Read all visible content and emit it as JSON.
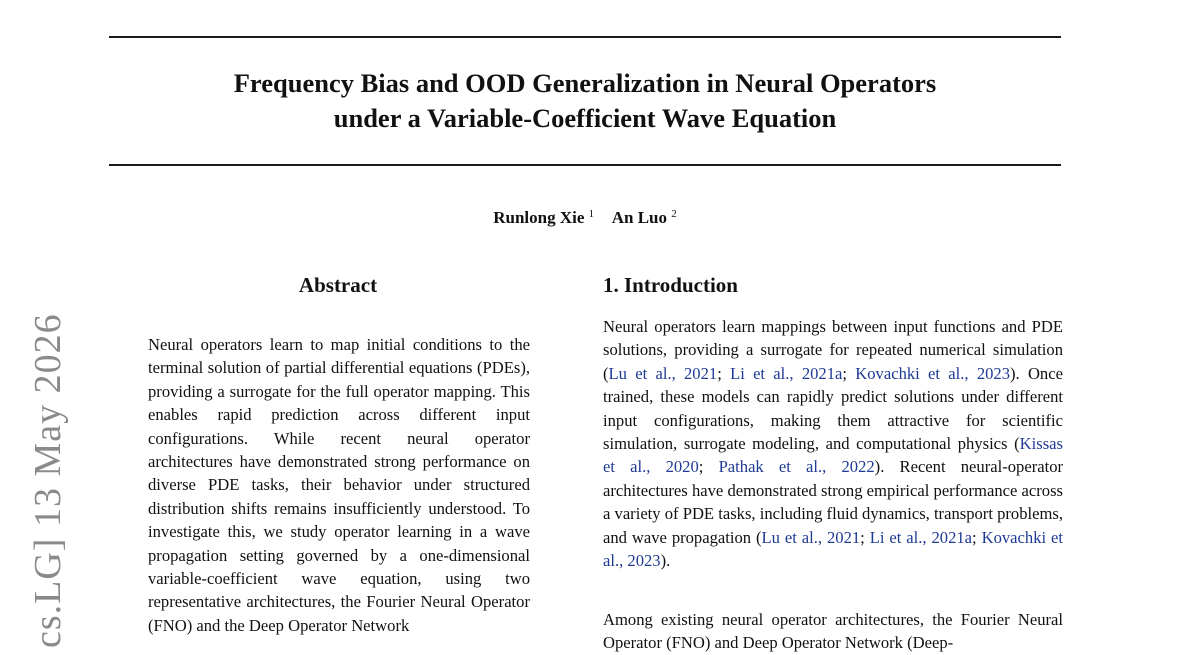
{
  "paper": {
    "title_line1": "Frequency Bias and OOD Generalization in Neural Operators",
    "title_line2": "under a Variable-Coefficient Wave Equation",
    "authors": [
      {
        "name": "Runlong Xie",
        "affil": "1"
      },
      {
        "name": "An Luo",
        "affil": "2"
      }
    ],
    "arxiv_stamp": "cs.LG]  13 May 2026"
  },
  "abstract": {
    "heading": "Abstract",
    "text": "Neural operators learn to map initial conditions to the terminal solution of partial differential equations (PDEs), providing a surrogate for the full operator mapping. This enables rapid prediction across different input configurations. While recent neural operator architectures have demonstrated strong performance on diverse PDE tasks, their behavior under structured distribution shifts remains insufficiently understood. To investigate this, we study operator learning in a wave propagation setting governed by a one-dimensional variable-coefficient wave equation, using two representative architectures, the Fourier Neural Operator (FNO) and the Deep Operator Network"
  },
  "introduction": {
    "heading": "1. Introduction",
    "p1": {
      "t1": "Neural operators learn mappings between input functions and PDE solutions, providing a surrogate for repeated numerical simulation (",
      "c1": "Lu et al., 2021",
      "s1": "; ",
      "c2": "Li et al., 2021a",
      "s2": "; ",
      "c3": "Kovachki et al., 2023",
      "t2": "). Once trained, these models can rapidly predict solutions under different input configurations, making them attractive for scientific simulation, surrogate modeling, and computational physics (",
      "c4": "Kissas et al., 2020",
      "s3": "; ",
      "c5": "Pathak et al., 2022",
      "t3": ").  Recent neural-operator architectures have demonstrated strong empirical performance across a variety of PDE tasks, including fluid dynamics, transport problems, and wave propagation (",
      "c6": "Lu et al., 2021",
      "s4": "; ",
      "c7": "Li et al., 2021a",
      "s5": "; ",
      "c8": "Kovachki et al., 2023",
      "t4": ")."
    },
    "p2": "Among existing neural operator architectures, the Fourier Neural Operator (FNO) and Deep Operator Network (Deep-"
  }
}
